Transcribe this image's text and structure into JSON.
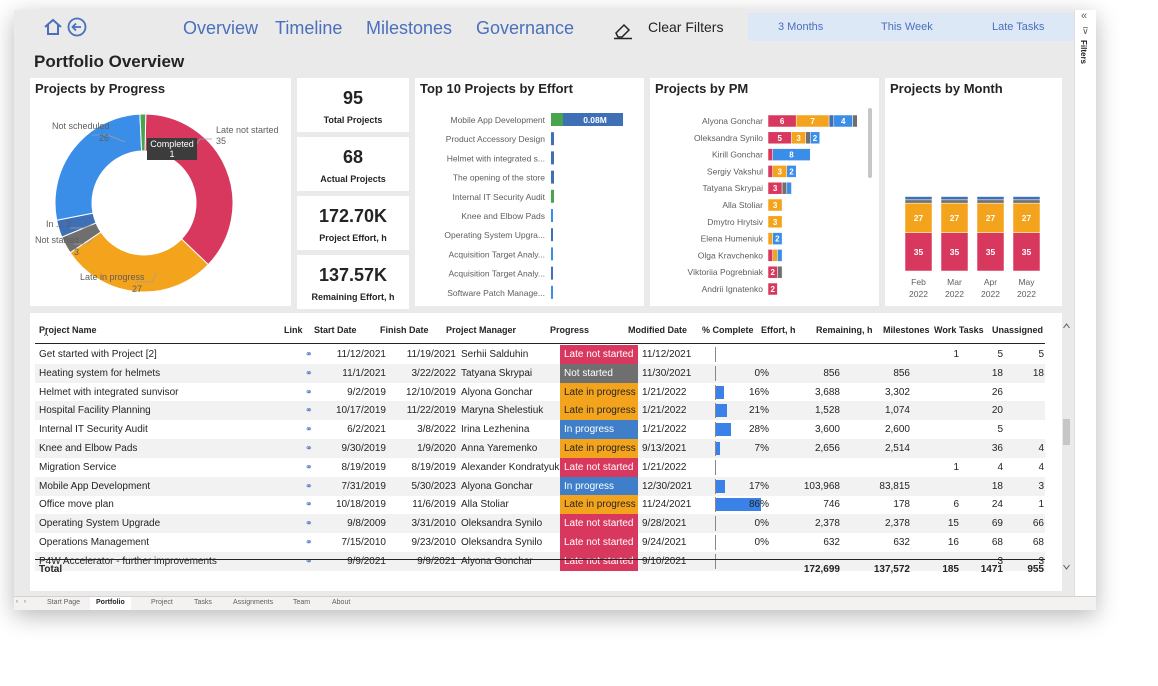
{
  "nav": {
    "links": [
      "Overview",
      "Timeline",
      "Milestones",
      "Governance"
    ],
    "clear_filters": "Clear Filters",
    "periods": [
      "3 Months",
      "This Week",
      "Late Tasks"
    ],
    "filters_label": "Filters",
    "collapse_glyph": "«",
    "filter_glyph": "⊽"
  },
  "page_title": "Portfolio Overview",
  "progress_card": {
    "title": "Projects by Progress",
    "labels": {
      "not_scheduled": "Not scheduled",
      "not_scheduled_val": "26",
      "late_not_started": "Late not started",
      "late_not_started_val": "35",
      "in": "In ... 3",
      "not_started": "Not started",
      "not_started_val": "3",
      "late_in_progress": "Late in progress",
      "late_in_progress_val": "27"
    },
    "tooltip_label": "Completed",
    "tooltip_value": "1",
    "slices": [
      {
        "name": "Late not started",
        "value": 35,
        "color": "#d9385e"
      },
      {
        "name": "Late in progress",
        "value": 27,
        "color": "#f4a41c"
      },
      {
        "name": "Not started",
        "value": 3,
        "color": "#6f6f6f"
      },
      {
        "name": "In progress",
        "value": 3,
        "color": "#3f6fb5"
      },
      {
        "name": "Not scheduled",
        "value": 26,
        "color": "#3b8ee8"
      },
      {
        "name": "Completed",
        "value": 1,
        "color": "#49a54d"
      }
    ]
  },
  "kpis": [
    {
      "value": "95",
      "label": "Total Projects"
    },
    {
      "value": "68",
      "label": "Actual Projects"
    },
    {
      "value": "172.70K",
      "label": "Project Effort, h"
    },
    {
      "value": "137.57K",
      "label": "Remaining Effort, h"
    }
  ],
  "effort_card": {
    "title": "Top 10 Projects by Effort",
    "value_label": "0.08M",
    "projects": [
      "Mobile App Development",
      "Product Accessory Design",
      "Helmet with integrated s...",
      "The opening of the store",
      "Internal IT Security Audit",
      "Knee and Elbow Pads",
      "Operating System Upgra...",
      "Acquisition Target Analy...",
      "Acquisition Target Analy...",
      "Software Patch Manage..."
    ]
  },
  "pm_card": {
    "title": "Projects by PM",
    "managers": [
      {
        "name": "Alyona Gonchar",
        "segments": [
          {
            "v": 6,
            "c": "#d9385e",
            "label": "6"
          },
          {
            "v": 7,
            "c": "#f4a41c",
            "label": "7"
          },
          {
            "v": 1,
            "c": "#3f6fb5",
            "label": ""
          },
          {
            "v": 4,
            "c": "#3b8ee8",
            "label": "4"
          },
          {
            "v": 1,
            "c": "#6f6f6f",
            "label": ""
          }
        ]
      },
      {
        "name": "Oleksandra Synilo",
        "segments": [
          {
            "v": 5,
            "c": "#d9385e",
            "label": "5"
          },
          {
            "v": 3,
            "c": "#f4a41c",
            "label": "3"
          },
          {
            "v": 1,
            "c": "#6f6f6f",
            "label": ""
          },
          {
            "v": 2,
            "c": "#3b8ee8",
            "label": "2"
          }
        ]
      },
      {
        "name": "Kirill Gonchar",
        "segments": [
          {
            "v": 1,
            "c": "#d9385e",
            "label": ""
          },
          {
            "v": 8,
            "c": "#3b8ee8",
            "label": "8"
          }
        ]
      },
      {
        "name": "Sergiy Vakshul",
        "segments": [
          {
            "v": 1,
            "c": "#d9385e",
            "label": ""
          },
          {
            "v": 3,
            "c": "#f4a41c",
            "label": "3"
          },
          {
            "v": 2,
            "c": "#3b8ee8",
            "label": "2"
          }
        ]
      },
      {
        "name": "Tatyana Skrypai",
        "segments": [
          {
            "v": 3,
            "c": "#d9385e",
            "label": "3"
          },
          {
            "v": 1,
            "c": "#6f6f6f",
            "label": ""
          },
          {
            "v": 1,
            "c": "#3b8ee8",
            "label": ""
          }
        ]
      },
      {
        "name": "Alla Stoliar",
        "segments": [
          {
            "v": 3,
            "c": "#f4a41c",
            "label": "3"
          }
        ]
      },
      {
        "name": "Dmytro Hrytsiv",
        "segments": [
          {
            "v": 3,
            "c": "#f4a41c",
            "label": "3"
          }
        ]
      },
      {
        "name": "Elena Humeniuk",
        "segments": [
          {
            "v": 1,
            "c": "#f4a41c",
            "label": ""
          },
          {
            "v": 2,
            "c": "#3b8ee8",
            "label": "2"
          }
        ]
      },
      {
        "name": "Olga Kravchenko",
        "segments": [
          {
            "v": 1,
            "c": "#d9385e",
            "label": ""
          },
          {
            "v": 1,
            "c": "#f4a41c",
            "label": ""
          },
          {
            "v": 1,
            "c": "#3b8ee8",
            "label": ""
          }
        ]
      },
      {
        "name": "Viktoriia Pogrebniak",
        "segments": [
          {
            "v": 2,
            "c": "#d9385e",
            "label": "2"
          },
          {
            "v": 1,
            "c": "#6f6f6f",
            "label": ""
          }
        ]
      },
      {
        "name": "Andrii Ignatenko",
        "segments": [
          {
            "v": 2,
            "c": "#d9385e",
            "label": "2"
          }
        ]
      }
    ]
  },
  "chart_data": {
    "type": "bar",
    "title": "Projects by Month",
    "categories": [
      "Feb 2022",
      "Mar 2022",
      "Apr 2022",
      "May 2022"
    ],
    "series": [
      {
        "name": "Late not started",
        "values": [
          35,
          35,
          35,
          35
        ],
        "color": "#d9385e"
      },
      {
        "name": "Late in progress",
        "values": [
          27,
          27,
          27,
          27
        ],
        "color": "#f4a41c"
      },
      {
        "name": "Not started",
        "values": [
          3,
          3,
          3,
          3
        ],
        "color": "#6f6f6f"
      },
      {
        "name": "In progress",
        "values": [
          3,
          3,
          3,
          3
        ],
        "color": "#3f6fb5"
      }
    ],
    "stacked": true
  },
  "table": {
    "headers": [
      "Project Name",
      "Link",
      "Start Date",
      "Finish Date",
      "Project Manager",
      "Progress",
      "Modified Date",
      "% Complete",
      "Effort, h",
      "Remaining, h",
      "Milestones",
      "Work Tasks",
      "Unassigned"
    ],
    "rows": [
      {
        "name": "Get started with Project [2]",
        "start": "11/12/2021",
        "finish": "11/19/2021",
        "pm": "Serhii Salduhin",
        "progress": "Late not started",
        "modified": "11/12/2021",
        "pct": "",
        "pct_val": 0,
        "effort": "",
        "remaining": "",
        "milestones": "1",
        "tasks": "5",
        "unassigned": "5"
      },
      {
        "name": "Heating system for helmets",
        "start": "11/1/2021",
        "finish": "3/22/2022",
        "pm": "Tatyana Skrypai",
        "progress": "Not started",
        "modified": "11/30/2021",
        "pct": "0%",
        "pct_val": 0,
        "effort": "856",
        "remaining": "856",
        "milestones": "",
        "tasks": "18",
        "unassigned": "18"
      },
      {
        "name": "Helmet with integrated sunvisor",
        "start": "9/2/2019",
        "finish": "12/10/2019",
        "pm": "Alyona Gonchar",
        "progress": "Late in progress",
        "modified": "1/21/2022",
        "pct": "16%",
        "pct_val": 16,
        "effort": "3,688",
        "remaining": "3,302",
        "milestones": "",
        "tasks": "26",
        "unassigned": ""
      },
      {
        "name": "Hospital Facility Planning",
        "start": "10/17/2019",
        "finish": "11/22/2019",
        "pm": "Maryna Shelestiuk",
        "progress": "Late in progress",
        "modified": "1/21/2022",
        "pct": "21%",
        "pct_val": 21,
        "effort": "1,528",
        "remaining": "1,074",
        "milestones": "",
        "tasks": "20",
        "unassigned": ""
      },
      {
        "name": "Internal IT Security Audit",
        "start": "6/2/2021",
        "finish": "3/8/2022",
        "pm": "Irina Lezhenina",
        "progress": "In progress",
        "modified": "1/21/2022",
        "pct": "28%",
        "pct_val": 28,
        "effort": "3,600",
        "remaining": "2,600",
        "milestones": "",
        "tasks": "5",
        "unassigned": ""
      },
      {
        "name": "Knee and Elbow Pads",
        "start": "9/30/2019",
        "finish": "1/9/2020",
        "pm": "Anna Yaremenko",
        "progress": "Late in progress",
        "modified": "9/13/2021",
        "pct": "7%",
        "pct_val": 7,
        "effort": "2,656",
        "remaining": "2,514",
        "milestones": "",
        "tasks": "36",
        "unassigned": "4"
      },
      {
        "name": "Migration Service",
        "start": "8/19/2019",
        "finish": "8/19/2019",
        "pm": "Alexander Kondratyuk",
        "progress": "Late not started",
        "modified": "1/21/2022",
        "pct": "",
        "pct_val": 0,
        "effort": "",
        "remaining": "",
        "milestones": "1",
        "tasks": "4",
        "unassigned": "4"
      },
      {
        "name": "Mobile App Development",
        "start": "7/31/2019",
        "finish": "5/30/2023",
        "pm": "Alyona Gonchar",
        "progress": "In progress",
        "modified": "12/30/2021",
        "pct": "17%",
        "pct_val": 17,
        "effort": "103,968",
        "remaining": "83,815",
        "milestones": "",
        "tasks": "18",
        "unassigned": "3"
      },
      {
        "name": "Office move plan",
        "start": "10/18/2019",
        "finish": "11/6/2019",
        "pm": "Alla Stoliar",
        "progress": "Late in progress",
        "modified": "11/24/2021",
        "pct": "86%",
        "pct_val": 86,
        "effort": "746",
        "remaining": "178",
        "milestones": "6",
        "tasks": "24",
        "unassigned": "1"
      },
      {
        "name": "Operating System Upgrade",
        "start": "9/8/2009",
        "finish": "3/31/2010",
        "pm": "Oleksandra Synilo",
        "progress": "Late not started",
        "modified": "9/28/2021",
        "pct": "0%",
        "pct_val": 0,
        "effort": "2,378",
        "remaining": "2,378",
        "milestones": "15",
        "tasks": "69",
        "unassigned": "66"
      },
      {
        "name": "Operations Management",
        "start": "7/15/2010",
        "finish": "9/23/2010",
        "pm": "Oleksandra Synilo",
        "progress": "Late not started",
        "modified": "9/24/2021",
        "pct": "0%",
        "pct_val": 0,
        "effort": "632",
        "remaining": "632",
        "milestones": "16",
        "tasks": "68",
        "unassigned": "68"
      },
      {
        "name": "P4W Accelerator - further improvements",
        "start": "9/9/2021",
        "finish": "9/9/2021",
        "pm": "Alyona Gonchar",
        "progress": "Late not started",
        "modified": "9/10/2021",
        "pct": "",
        "pct_val": 0,
        "effort": "",
        "remaining": "",
        "milestones": "",
        "tasks": "3",
        "unassigned": "3"
      }
    ],
    "total": {
      "label": "Total",
      "effort": "172,699",
      "remaining": "137,572",
      "milestones": "185",
      "tasks": "1471",
      "unassigned": "955"
    }
  },
  "progress_colors": {
    "Late not started": "#d9385e",
    "Not started": "#6f6f6f",
    "Late in progress": "#f4a41c",
    "In progress": "#3f7fc9"
  },
  "tabs": [
    "Start Page",
    "Portfolio",
    "Project",
    "Tasks",
    "Assignments",
    "Team",
    "About"
  ]
}
